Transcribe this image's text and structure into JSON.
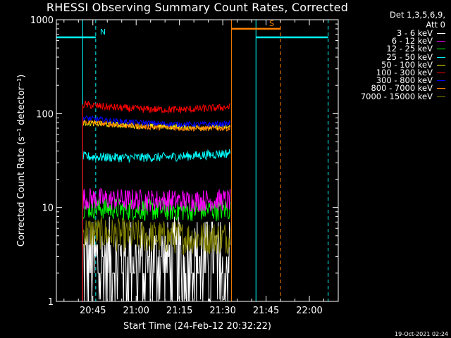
{
  "title": "RHESSI Observing Summary Count Rates, Corrected",
  "legend": {
    "header_line1": "Det 1,3,5,6,9,",
    "header_line2": "Att 0",
    "entries": [
      {
        "label": "3 - 6 keV",
        "color": "#ffffff"
      },
      {
        "label": "6 - 12 keV",
        "color": "#ff00ff"
      },
      {
        "label": "12 - 25 keV",
        "color": "#00ff00"
      },
      {
        "label": "25 - 50 keV",
        "color": "#00ffff"
      },
      {
        "label": "50 - 100 keV",
        "color": "#ffff00"
      },
      {
        "label": "100 - 300 keV",
        "color": "#ff0000"
      },
      {
        "label": "300 - 800 keV",
        "color": "#0000ff"
      },
      {
        "label": "800 - 7000 keV",
        "color": "#ff8000"
      },
      {
        "label": "7000 - 15000 keV",
        "color": "#808000"
      }
    ]
  },
  "footer_date": "19-Oct-2021 02:24",
  "chart_data": {
    "type": "line",
    "xlabel": "Start Time (24-Feb-12 20:32:22)",
    "ylabel": "Corrected Count Rate (s⁻¹ detector⁻¹)",
    "yscale": "log",
    "ylim": [
      1,
      1000
    ],
    "xlim": [
      "20:32:22",
      "22:10:00"
    ],
    "x_ticks": [
      "20:45",
      "21:00",
      "21:15",
      "21:30",
      "21:45",
      "22:00"
    ],
    "y_ticks": [
      "1",
      "10",
      "100",
      "1000"
    ],
    "data_interval": [
      "20:41:30",
      "21:32:30"
    ],
    "series": [
      {
        "name": "3 - 6 keV",
        "color": "#ffffff",
        "start": 2.7,
        "middle": 2.7,
        "end": 2.9,
        "noise": 0.45
      },
      {
        "name": "6 - 12 keV",
        "color": "#ff00ff",
        "start": 12.5,
        "middle": 11.5,
        "end": 12,
        "noise": 0.12
      },
      {
        "name": "12 - 25 keV",
        "color": "#00ff00",
        "start": 10,
        "middle": 9.2,
        "end": 9.5,
        "noise": 0.12
      },
      {
        "name": "25 - 50 keV",
        "color": "#00ffff",
        "start": 35,
        "middle": 32,
        "end": 38,
        "noise": 0.05
      },
      {
        "name": "50 - 100 keV",
        "color": "#ffff00",
        "start": 80,
        "middle": 70,
        "end": 72,
        "noise": 0.03
      },
      {
        "name": "100 - 300 keV",
        "color": "#ff0000",
        "start": 125,
        "middle": 100,
        "end": 118,
        "noise": 0.04
      },
      {
        "name": "300 - 800 keV",
        "color": "#0000ff",
        "start": 90,
        "middle": 73,
        "end": 78,
        "noise": 0.03
      },
      {
        "name": "800 - 7000 keV",
        "color": "#ff8000",
        "start": 82,
        "middle": 67,
        "end": 70,
        "noise": 0.03
      },
      {
        "name": "7000 - 15000 keV",
        "color": "#808000",
        "start": 5.5,
        "middle": 4.6,
        "end": 4.8,
        "noise": 0.18
      }
    ],
    "flags": [
      {
        "label": "N",
        "color": "#00ffff",
        "intervals": [
          [
            "20:32:22",
            "20:46:00"
          ],
          [
            "21:41:30",
            "22:06:30"
          ]
        ],
        "level": 650,
        "edges": [
          [
            "20:46:00",
            "dashed"
          ],
          [
            "21:41:30",
            "solid"
          ],
          [
            "22:06:30",
            "dashed"
          ]
        ]
      },
      {
        "label": "S",
        "color": "#ff8000",
        "intervals": [
          [
            "21:33:00",
            "21:50:00"
          ]
        ],
        "level": 800,
        "edges": [
          [
            "21:33:00",
            "solid"
          ],
          [
            "21:50:00",
            "dashed"
          ]
        ]
      }
    ],
    "interval_edges": [
      {
        "time": "20:32:22",
        "color": "#00ffff",
        "style": "solid"
      },
      {
        "time": "20:41:30",
        "color": "#00ffff",
        "style": "solid"
      }
    ]
  }
}
